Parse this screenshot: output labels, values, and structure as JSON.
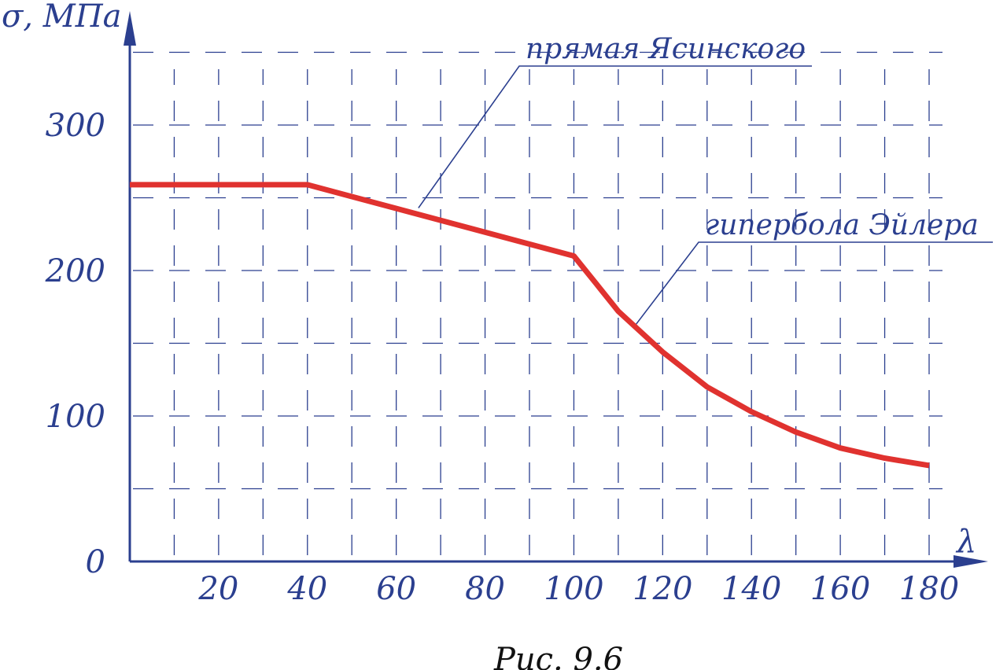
{
  "chart_data": {
    "type": "line",
    "x_axis_label": "λ",
    "y_axis_label": "σ, МПа",
    "x_ticks": [
      20,
      40,
      60,
      80,
      100,
      120,
      140,
      160,
      180
    ],
    "y_ticks": [
      0,
      100,
      200,
      300
    ],
    "xlim": [
      0,
      180
    ],
    "ylim": [
      0,
      300
    ],
    "grid": true,
    "series": [
      {
        "x": [
          0,
          40,
          100,
          105,
          110,
          120,
          130,
          140,
          150,
          160,
          170,
          180
        ],
        "y": [
          259,
          259,
          210,
          191,
          172,
          144,
          120,
          103,
          89,
          78,
          71,
          66
        ]
      }
    ],
    "annotations": [
      {
        "text": "прямая Ясинского",
        "x": 65,
        "y": 243
      },
      {
        "text": "гипербола Эйлера",
        "x": 114,
        "y": 163
      }
    ],
    "caption": "Рис. 9.6"
  },
  "colors": {
    "axis": "#2b3f8f",
    "grid": "#2b3f8f",
    "curve": "#e0322f",
    "text": "#2b3f8f",
    "caption": "#111111"
  }
}
